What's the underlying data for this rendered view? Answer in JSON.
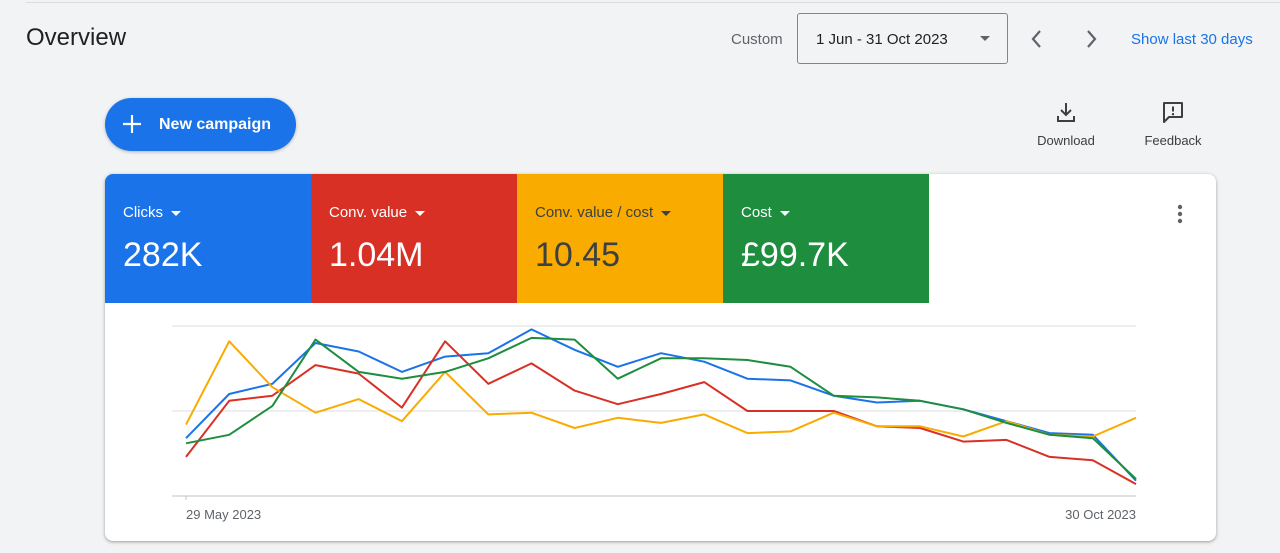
{
  "header": {
    "title": "Overview",
    "custom_label": "Custom",
    "date_range": "1 Jun - 31 Oct 2023",
    "show_last_link": "Show last 30 days"
  },
  "actions": {
    "new_campaign_label": "New campaign",
    "download_label": "Download",
    "feedback_label": "Feedback"
  },
  "metrics": [
    {
      "label": "Clicks",
      "value": "282K",
      "color": "#1a73e8"
    },
    {
      "label": "Conv. value",
      "value": "1.04M",
      "color": "#d93025"
    },
    {
      "label": "Conv. value / cost",
      "value": "10.45",
      "color": "#f9ab00"
    },
    {
      "label": "Cost",
      "value": "£99.7K",
      "color": "#1e8e3e"
    }
  ],
  "chart_data": {
    "type": "line",
    "x_start_label": "29 May 2023",
    "x_end_label": "30 Oct 2023",
    "ylim": [
      0,
      100
    ],
    "gridlines": [
      0,
      50,
      100
    ],
    "series": [
      {
        "name": "Clicks",
        "color": "#1a73e8",
        "values": [
          34,
          60,
          66,
          90,
          85,
          73,
          82,
          84,
          98,
          86,
          76,
          84,
          79,
          69,
          68,
          59,
          55,
          56,
          51,
          44,
          37,
          36,
          9
        ]
      },
      {
        "name": "Conv. value",
        "color": "#d93025",
        "values": [
          23,
          56,
          59,
          77,
          72,
          52,
          91,
          66,
          78,
          62,
          54,
          60,
          67,
          50,
          50,
          50,
          41,
          40,
          32,
          33,
          23,
          21,
          7
        ]
      },
      {
        "name": "Conv. value / cost",
        "color": "#f9ab00",
        "values": [
          42,
          91,
          64,
          49,
          57,
          44,
          73,
          48,
          49,
          40,
          46,
          43,
          48,
          37,
          38,
          49,
          41,
          41,
          35,
          44,
          36,
          35,
          46
        ]
      },
      {
        "name": "Cost",
        "color": "#1e8e3e",
        "values": [
          31,
          36,
          53,
          92,
          73,
          69,
          73,
          81,
          93,
          92,
          69,
          81,
          81,
          80,
          76,
          59,
          58,
          56,
          51,
          43,
          36,
          34,
          10
        ]
      }
    ]
  }
}
